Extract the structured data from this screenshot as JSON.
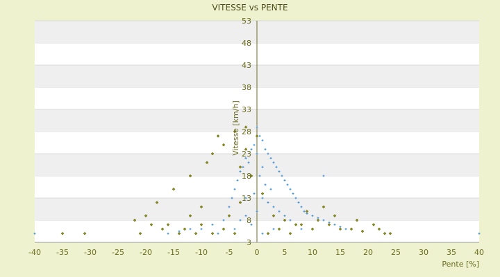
{
  "chart_data": {
    "type": "scatter",
    "title": "VITESSE vs PENTE",
    "xlabel": "Pente [%]",
    "ylabel": "Vitesse [km/h]",
    "xlim": [
      -40,
      40
    ],
    "ylim": [
      3,
      53
    ],
    "x_ticks": [
      "-40",
      "-35",
      "-30",
      "-25",
      "-20",
      "-15",
      "-10",
      "-5",
      "0",
      "5",
      "10",
      "15",
      "20",
      "25",
      "30",
      "35",
      "40"
    ],
    "y_ticks": [
      "3",
      "8",
      "13",
      "18",
      "23",
      "28",
      "33",
      "38",
      "43",
      "48",
      "53"
    ],
    "grid": "horizontal bands",
    "series": [
      {
        "color": "#3a8fd6",
        "marker": "plus",
        "summary": "dense cloud centered near 0% slope; highest speeds near 0..2% (up to ~30 km/h), decreasing toward steeper slopes",
        "points": [
          [
            0,
            29
          ],
          [
            0.5,
            27
          ],
          [
            1,
            26
          ],
          [
            -0.5,
            25
          ],
          [
            -1,
            24
          ],
          [
            1.5,
            24
          ],
          [
            2,
            23
          ],
          [
            0,
            23
          ],
          [
            -2,
            22
          ],
          [
            2.5,
            22
          ],
          [
            3,
            21
          ],
          [
            -1.5,
            21
          ],
          [
            3.5,
            20
          ],
          [
            -2.5,
            20
          ],
          [
            1,
            20
          ],
          [
            4,
            19
          ],
          [
            -3,
            19
          ],
          [
            4.5,
            18
          ],
          [
            5,
            17
          ],
          [
            -3.5,
            17
          ],
          [
            5.5,
            16
          ],
          [
            6,
            15
          ],
          [
            -4,
            15
          ],
          [
            6.5,
            14
          ],
          [
            7,
            13
          ],
          [
            -4.5,
            13
          ],
          [
            7.5,
            12
          ],
          [
            8,
            11
          ],
          [
            -5,
            11
          ],
          [
            8.5,
            10
          ],
          [
            9,
            9.5
          ],
          [
            10,
            9
          ],
          [
            11,
            8.5
          ],
          [
            12,
            8
          ],
          [
            13,
            7.5
          ],
          [
            14,
            7
          ],
          [
            15,
            6.5
          ],
          [
            16,
            6
          ],
          [
            0.5,
            18
          ],
          [
            1.5,
            16
          ],
          [
            2.5,
            15
          ],
          [
            -0.5,
            14
          ],
          [
            1,
            13
          ],
          [
            2,
            12
          ],
          [
            3,
            11
          ],
          [
            4,
            10
          ],
          [
            5,
            9
          ],
          [
            6,
            8
          ],
          [
            7,
            7
          ],
          [
            -2,
            9
          ],
          [
            -3,
            8
          ],
          [
            -6,
            8
          ],
          [
            -8,
            7
          ],
          [
            -10,
            6
          ],
          [
            -12,
            6
          ],
          [
            -14,
            5.5
          ],
          [
            -16,
            5
          ],
          [
            12,
            18
          ],
          [
            -40,
            5
          ],
          [
            40,
            5
          ],
          [
            -2,
            13
          ],
          [
            0,
            10
          ],
          [
            -1,
            7
          ],
          [
            1,
            5
          ],
          [
            3,
            6
          ],
          [
            -4,
            6
          ],
          [
            8,
            6
          ],
          [
            -7,
            5
          ]
        ]
      },
      {
        "color": "#8a8a10",
        "marker": "diamond",
        "summary": "sparser outliers spread over -20..25% slope, mostly 4..12 km/h, a few up to ~29 km/h near -2..0%",
        "points": [
          [
            -2,
            29
          ],
          [
            -4,
            28
          ],
          [
            -7,
            27
          ],
          [
            -6,
            25
          ],
          [
            -8,
            23
          ],
          [
            -9,
            21
          ],
          [
            -12,
            18
          ],
          [
            -15,
            15
          ],
          [
            -18,
            12
          ],
          [
            -20,
            9
          ],
          [
            -22,
            8
          ],
          [
            -16,
            7
          ],
          [
            -13,
            6
          ],
          [
            -10,
            7
          ],
          [
            -5,
            9
          ],
          [
            -3,
            12
          ],
          [
            -1,
            18
          ],
          [
            1,
            14
          ],
          [
            3,
            9
          ],
          [
            5,
            8
          ],
          [
            7,
            7
          ],
          [
            9,
            10
          ],
          [
            11,
            8
          ],
          [
            12,
            11
          ],
          [
            13,
            7
          ],
          [
            15,
            6
          ],
          [
            17,
            6
          ],
          [
            19,
            5.5
          ],
          [
            21,
            7
          ],
          [
            23,
            5
          ],
          [
            24,
            5
          ],
          [
            22,
            6
          ],
          [
            18,
            8
          ],
          [
            14,
            9
          ],
          [
            10,
            6
          ],
          [
            8,
            7
          ],
          [
            6,
            5
          ],
          [
            4,
            6
          ],
          [
            2,
            5
          ],
          [
            -4,
            5
          ],
          [
            -6,
            6
          ],
          [
            -8,
            5
          ],
          [
            -11,
            5
          ],
          [
            -14,
            5
          ],
          [
            -17,
            6
          ],
          [
            -19,
            7
          ],
          [
            -21,
            5
          ],
          [
            -35,
            5
          ],
          [
            -31,
            5
          ],
          [
            -2,
            24
          ],
          [
            -3,
            20
          ],
          [
            0,
            27
          ],
          [
            -10,
            11
          ],
          [
            -12,
            9
          ]
        ]
      }
    ]
  }
}
